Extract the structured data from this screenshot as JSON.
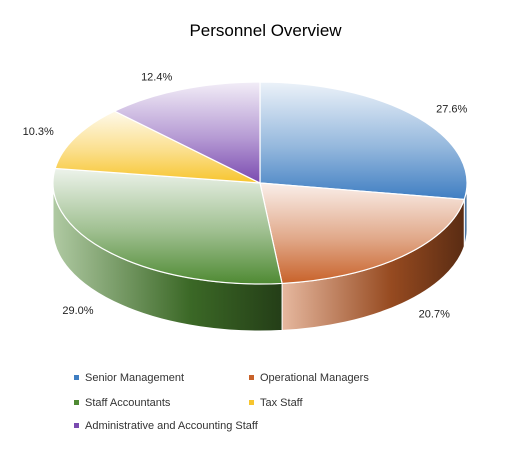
{
  "chart_data": {
    "type": "pie",
    "title": "Personnel Overview",
    "categories": [
      "Senior Management",
      "Operational Managers",
      "Staff Accountants",
      "Tax Staff",
      "Administrative and Accounting Staff"
    ],
    "values": [
      27.6,
      20.7,
      29.0,
      10.3,
      12.4
    ],
    "data_labels": [
      "27.6%",
      "20.7%",
      "29.0%",
      "10.3%",
      "12.4%"
    ],
    "colors": [
      "#3f7ec2",
      "#c8622a",
      "#4f8a33",
      "#f7c52e",
      "#7a4ab0"
    ],
    "legend_placement": "bottom",
    "style": "3d-pie"
  }
}
